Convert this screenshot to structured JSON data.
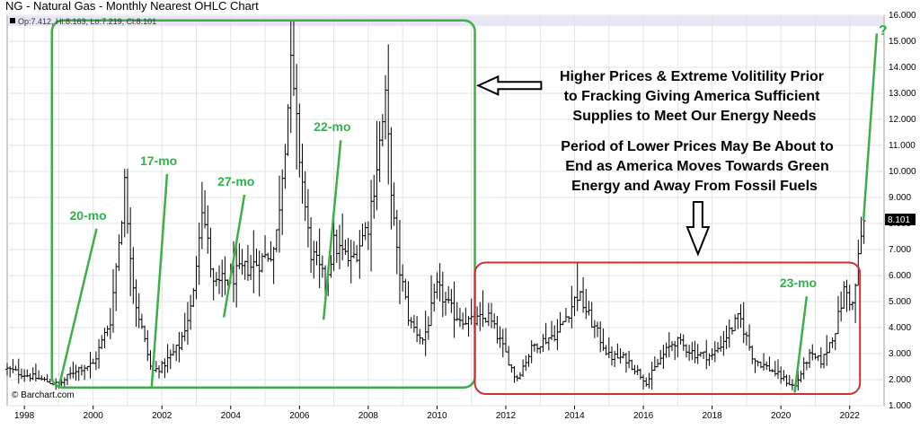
{
  "chart_data": {
    "type": "ohlc",
    "title": "NG - Natural Gas - Monthly Nearest OHLC Chart",
    "legend_readout": "Op:7.412, Hi:8.163, Lo:7.219, Cl:8.101",
    "last_price_label": "8.101",
    "credit": "© Barchart.com",
    "x_ticks": [
      "1998",
      "2000",
      "2002",
      "2004",
      "2006",
      "2008",
      "2010",
      "2012",
      "2014",
      "2016",
      "2018",
      "2020",
      "2022"
    ],
    "y_ticks": [
      "1.000",
      "2.000",
      "3.000",
      "4.000",
      "5.000",
      "6.000",
      "7.000",
      "8.000",
      "9.000",
      "10.000",
      "11.000",
      "12.000",
      "13.000",
      "14.000",
      "15.000",
      "16.000"
    ],
    "xlim": [
      1997.5,
      2023.0
    ],
    "ylim": [
      1.0,
      16.0
    ],
    "last_price": 8.101,
    "grid": true,
    "price_profile_closes": [
      [
        1997.5,
        2.4
      ],
      [
        1998.0,
        2.2
      ],
      [
        1998.5,
        2.0
      ],
      [
        1999.0,
        1.8
      ],
      [
        1999.5,
        2.4
      ],
      [
        2000.0,
        2.6
      ],
      [
        2000.5,
        4.3
      ],
      [
        2000.92,
        9.5
      ],
      [
        2001.2,
        5.2
      ],
      [
        2001.7,
        2.3
      ],
      [
        2002.0,
        2.5
      ],
      [
        2002.5,
        3.3
      ],
      [
        2002.9,
        5.0
      ],
      [
        2003.15,
        8.9
      ],
      [
        2003.5,
        5.6
      ],
      [
        2004.0,
        5.9
      ],
      [
        2004.5,
        6.3
      ],
      [
        2004.9,
        6.6
      ],
      [
        2005.3,
        7.1
      ],
      [
        2005.75,
        13.8
      ],
      [
        2005.95,
        11.2
      ],
      [
        2006.3,
        7.0
      ],
      [
        2006.75,
        5.7
      ],
      [
        2007.0,
        7.2
      ],
      [
        2007.5,
        6.5
      ],
      [
        2008.0,
        8.0
      ],
      [
        2008.5,
        12.6
      ],
      [
        2008.8,
        7.0
      ],
      [
        2009.2,
        4.2
      ],
      [
        2009.6,
        3.5
      ],
      [
        2010.0,
        5.5
      ],
      [
        2010.5,
        4.5
      ],
      [
        2011.0,
        4.2
      ],
      [
        2011.5,
        4.4
      ],
      [
        2012.0,
        3.0
      ],
      [
        2012.3,
        2.0
      ],
      [
        2012.8,
        3.3
      ],
      [
        2013.5,
        3.8
      ],
      [
        2014.1,
        5.3
      ],
      [
        2014.5,
        4.2
      ],
      [
        2015.0,
        2.9
      ],
      [
        2015.5,
        2.8
      ],
      [
        2016.1,
        1.9
      ],
      [
        2016.5,
        2.8
      ],
      [
        2016.9,
        3.5
      ],
      [
        2017.5,
        3.0
      ],
      [
        2018.0,
        2.9
      ],
      [
        2018.8,
        4.4
      ],
      [
        2019.2,
        2.8
      ],
      [
        2019.8,
        2.3
      ],
      [
        2020.4,
        1.7
      ],
      [
        2020.8,
        2.9
      ],
      [
        2021.2,
        2.7
      ],
      [
        2021.6,
        4.0
      ],
      [
        2021.85,
        5.5
      ],
      [
        2022.1,
        4.8
      ],
      [
        2022.3,
        7.2
      ],
      [
        2022.4,
        8.101
      ]
    ],
    "annotations": {
      "top_text": [
        "Higher Prices & Extreme Volitility Prior",
        "to Fracking Giving America Sufficient",
        "Supplies to Meet Our Energy Needs"
      ],
      "bottom_text": [
        "Period of Lower Prices May Be About to",
        "End as America Moves Towards Green",
        "Energy and Away From Fossil Fuels"
      ],
      "question_mark": "?",
      "rallies": [
        {
          "label": "20-mo",
          "start": [
            1999.0,
            1.7
          ],
          "end": [
            2000.1,
            7.8
          ]
        },
        {
          "label": "17-mo",
          "start": [
            2001.7,
            1.7
          ],
          "end": [
            2002.15,
            9.9
          ]
        },
        {
          "label": "27-mo",
          "start": [
            2003.8,
            4.4
          ],
          "end": [
            2004.4,
            9.1
          ]
        },
        {
          "label": "22-mo",
          "start": [
            2006.7,
            4.3
          ],
          "end": [
            2007.2,
            11.2
          ]
        },
        {
          "label": "23-mo",
          "start": [
            2020.4,
            1.5
          ],
          "end": [
            2020.75,
            5.2
          ]
        }
      ]
    },
    "colors": {
      "bars": "#000000",
      "green_box": "#3fae4a",
      "red_box": "#d12f2f",
      "rally_lines": "#3fae4a",
      "grid": "#e3e3e3",
      "last_price_bg": "#000000"
    }
  }
}
